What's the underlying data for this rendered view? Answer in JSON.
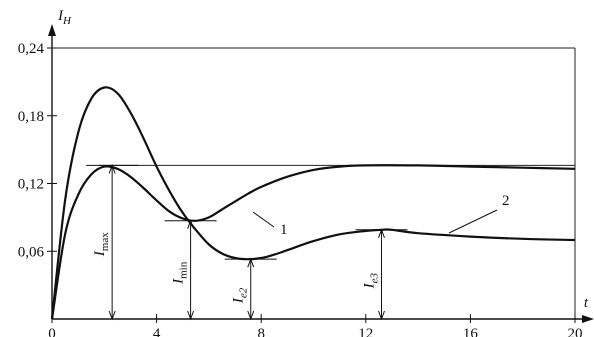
{
  "chart_data": {
    "type": "line",
    "title": "",
    "xlabel": "t",
    "ylabel": "I_H",
    "xlim": [
      0,
      20
    ],
    "ylim": [
      0,
      0.24
    ],
    "xticks": [
      0,
      4,
      8,
      12,
      16,
      20
    ],
    "xtick_labels": [
      "0",
      "4",
      "8",
      "12",
      "16",
      "20"
    ],
    "yticks": [
      0.06,
      0.12,
      0.18,
      0.24
    ],
    "ytick_labels": [
      "0,06",
      "0,12",
      "0,18",
      "0,24"
    ],
    "grid": false,
    "series": [
      {
        "name": "1",
        "x": [
          0,
          0.5,
          1,
          1.5,
          2,
          2.5,
          3,
          3.5,
          4,
          4.5,
          5,
          5.5,
          6,
          6.5,
          7,
          7.5,
          8,
          9,
          10,
          11,
          12,
          14,
          16,
          18,
          20
        ],
        "y": [
          0,
          0.075,
          0.11,
          0.128,
          0.135,
          0.133,
          0.126,
          0.116,
          0.105,
          0.095,
          0.089,
          0.087,
          0.09,
          0.097,
          0.104,
          0.111,
          0.117,
          0.126,
          0.132,
          0.135,
          0.136,
          0.136,
          0.135,
          0.134,
          0.133
        ]
      },
      {
        "name": "2",
        "x": [
          0,
          0.5,
          1,
          1.5,
          2,
          2.5,
          3,
          3.5,
          4,
          4.5,
          5,
          5.5,
          6,
          6.5,
          7,
          7.5,
          8,
          8.5,
          9,
          10,
          11,
          12,
          12.6,
          13,
          14,
          16,
          18,
          20
        ],
        "y": [
          0,
          0.105,
          0.165,
          0.195,
          0.205,
          0.2,
          0.183,
          0.16,
          0.135,
          0.113,
          0.094,
          0.079,
          0.066,
          0.058,
          0.054,
          0.053,
          0.054,
          0.057,
          0.061,
          0.069,
          0.075,
          0.078,
          0.079,
          0.079,
          0.076,
          0.073,
          0.071,
          0.07
        ]
      }
    ],
    "reference_lines": [
      {
        "y": 0.136,
        "x_from": 1.8,
        "x_to": 20
      }
    ],
    "annotations": [
      {
        "label": "I",
        "sub": "max",
        "x": 2.3,
        "y_from": 0,
        "y_to": 0.136
      },
      {
        "label": "I",
        "sub": "min",
        "x": 5.3,
        "y_from": 0,
        "y_to": 0.087
      },
      {
        "label": "I",
        "sub": "e2",
        "x": 7.6,
        "y_from": 0,
        "y_to": 0.053
      },
      {
        "label": "I",
        "sub": "e3",
        "x": 12.6,
        "y_from": 0,
        "y_to": 0.079
      }
    ],
    "curve_labels": [
      "1",
      "2"
    ]
  }
}
